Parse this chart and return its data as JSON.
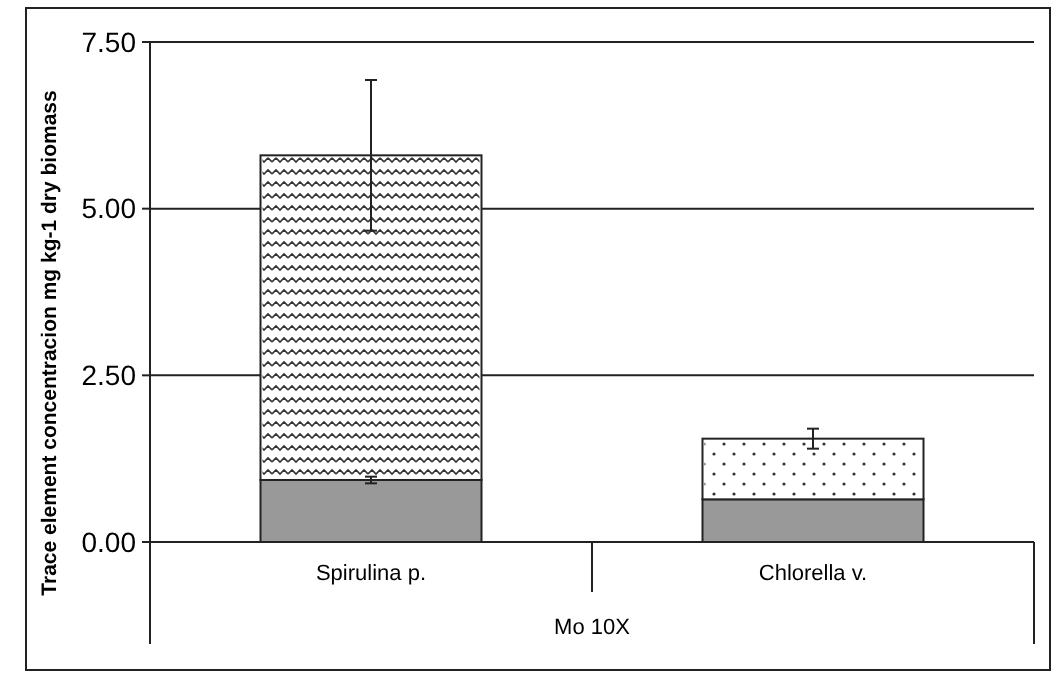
{
  "chart_data": {
    "type": "bar",
    "stacked": true,
    "ylabel": "Trace element concentracion mg kg-1 dry biomass",
    "xlabel": "Mo 10X",
    "categories": [
      "Spirulina p.",
      "Chlorella v."
    ],
    "series": [
      {
        "color": "#999999",
        "values": [
          0.93,
          0.64
        ],
        "errors": [
          0.05,
          null
        ]
      },
      {
        "color": "#ffffff",
        "values": [
          4.87,
          0.91
        ],
        "errors": [
          1.13,
          0.15
        ]
      }
    ],
    "ylim": [
      0,
      7.5
    ],
    "yticks": [
      {
        "value": 0,
        "label": "0.00"
      },
      {
        "value": 2.5,
        "label": "2.50"
      },
      {
        "value": 5,
        "label": "5.00"
      },
      {
        "value": 7.5,
        "label": "7.50"
      }
    ],
    "grid": "y"
  }
}
